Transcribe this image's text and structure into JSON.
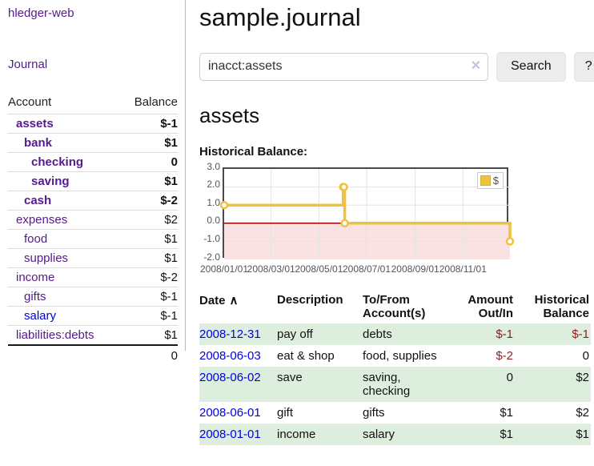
{
  "app": {
    "title": "hledger-web"
  },
  "sidebar": {
    "journal_link": "Journal",
    "accounts": {
      "col_account": "Account",
      "col_balance": "Balance",
      "rows": [
        {
          "name": "assets",
          "balance": "$-1"
        },
        {
          "name": "bank",
          "balance": "$1"
        },
        {
          "name": "checking",
          "balance": "0"
        },
        {
          "name": "saving",
          "balance": "$1"
        },
        {
          "name": "cash",
          "balance": "$-2"
        },
        {
          "name": "expenses",
          "balance": "$2"
        },
        {
          "name": "food",
          "balance": "$1"
        },
        {
          "name": "supplies",
          "balance": "$1"
        },
        {
          "name": "income",
          "balance": "$-2"
        },
        {
          "name": "gifts",
          "balance": "$-1"
        },
        {
          "name": "salary",
          "balance": "$-1"
        },
        {
          "name": "liabilities:debts",
          "balance": "$1"
        }
      ],
      "total": "0"
    }
  },
  "header": {
    "title": "sample.journal"
  },
  "search": {
    "value": "inacct:assets",
    "clear_icon": "✕",
    "button_label": "Search",
    "help_label": "?"
  },
  "account_page": {
    "heading": "assets",
    "chart_title": "Historical Balance:"
  },
  "chart_data": {
    "type": "line",
    "step": true,
    "title": "Historical Balance",
    "series": [
      {
        "name": "$",
        "color": "#edc240",
        "points": [
          {
            "x": "2008-01-01",
            "y": 1
          },
          {
            "x": "2008-06-01",
            "y": 2
          },
          {
            "x": "2008-06-02",
            "y": 2
          },
          {
            "x": "2008-06-03",
            "y": 0
          },
          {
            "x": "2008-12-31",
            "y": -1
          }
        ]
      }
    ],
    "x_range": [
      "2008-01-01",
      "2008-12-31"
    ],
    "ylim": [
      -2,
      3
    ],
    "y_ticks": [
      3,
      2,
      1,
      0,
      -1,
      -2
    ],
    "x_ticks": [
      {
        "date": "2008-01-01",
        "label": "2008/01/01"
      },
      {
        "date": "2008-03-01",
        "label": "2008/03/01"
      },
      {
        "date": "2008-05-01",
        "label": "2008/05/01"
      },
      {
        "date": "2008-07-01",
        "label": "2008/07/01"
      },
      {
        "date": "2008-09-01",
        "label": "2008/09/01"
      },
      {
        "date": "2008-11-01",
        "label": "2008/11/01"
      }
    ],
    "legend_position": "top-right",
    "grid": true,
    "grid_color": "#e3e3e3",
    "negative_region_fill": "#fbe2e2",
    "zero_line_color": "#a40000"
  },
  "register": {
    "headers": {
      "date": "Date",
      "sort_icon": "∧",
      "description": "Description",
      "accounts": "To/From Account(s)",
      "amount": "Amount Out/In",
      "balance": "Historical Balance"
    },
    "rows": [
      {
        "date": "2008-12-31",
        "description": "pay off",
        "accounts": "debts",
        "amount": "$-1",
        "balance": "$-1"
      },
      {
        "date": "2008-06-03",
        "description": "eat & shop",
        "accounts": "food, supplies",
        "amount": "$-2",
        "balance": "0"
      },
      {
        "date": "2008-06-02",
        "description": "save",
        "accounts": "saving, checking",
        "amount": "0",
        "balance": "$2"
      },
      {
        "date": "2008-06-01",
        "description": "gift",
        "accounts": "gifts",
        "amount": "$1",
        "balance": "$2"
      },
      {
        "date": "2008-01-01",
        "description": "income",
        "accounts": "salary",
        "amount": "$1",
        "balance": "$1"
      }
    ]
  },
  "colors": {
    "link_visited": "#551a8b",
    "link_unvisited": "#0000e0",
    "negative_strong": "#8f1d1d",
    "negative_soft": "#c47878",
    "row_shade_green": "#deeede",
    "chart_line": "#edc240"
  }
}
